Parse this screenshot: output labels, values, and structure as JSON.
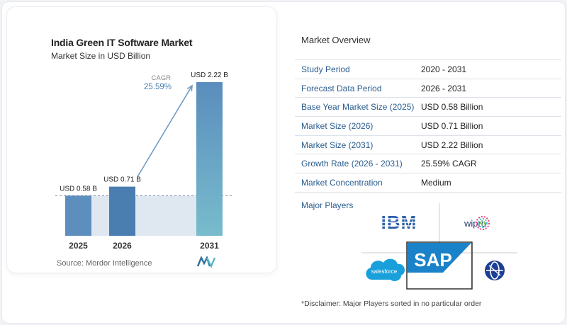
{
  "chart_data": {
    "type": "bar",
    "title": "India Green IT Software Market",
    "subtitle": "Market Size in USD Billion",
    "categories": [
      "2025",
      "2026",
      "2031"
    ],
    "values": [
      0.58,
      0.71,
      2.22
    ],
    "data_labels": [
      "USD 0.58 B",
      "USD 0.71 B",
      "USD 2.22 B"
    ],
    "annotation": {
      "label": "CAGR",
      "value": "25.59%"
    },
    "colors": {
      "bar_light": "#5d8fbe",
      "bar_dark": "#4a7eb0",
      "bar_last_top": "#5a8dbd",
      "bar_last_bottom": "#78bccc",
      "band": "#dfe7f1",
      "arrow": "#6e9cc6"
    }
  },
  "source": "Source: Mordor Intelligence",
  "overview": {
    "title": "Market Overview",
    "rows": [
      {
        "key": "Study Period",
        "value": "2020 - 2031"
      },
      {
        "key": "Forecast Data Period",
        "value": "2026 - 2031"
      },
      {
        "key": "Base Year Market Size (2025)",
        "value": "USD 0.58 Billion"
      },
      {
        "key": "Market Size (2026)",
        "value": "USD 0.71 Billion"
      },
      {
        "key": "Market Size (2031)",
        "value": "USD 2.22 Billion"
      },
      {
        "key": "Growth Rate (2026 - 2031)",
        "value": "25.59% CAGR"
      },
      {
        "key": "Market Concentration",
        "value": "Medium"
      }
    ],
    "players_title": "Major Players",
    "players": {
      "ibm": "IBM",
      "wipro": "wipro",
      "salesforce": "salesforce",
      "sap": "SAP",
      "globe": ""
    }
  },
  "disclaimer": "*Disclaimer: Major Players sorted in no particular order"
}
